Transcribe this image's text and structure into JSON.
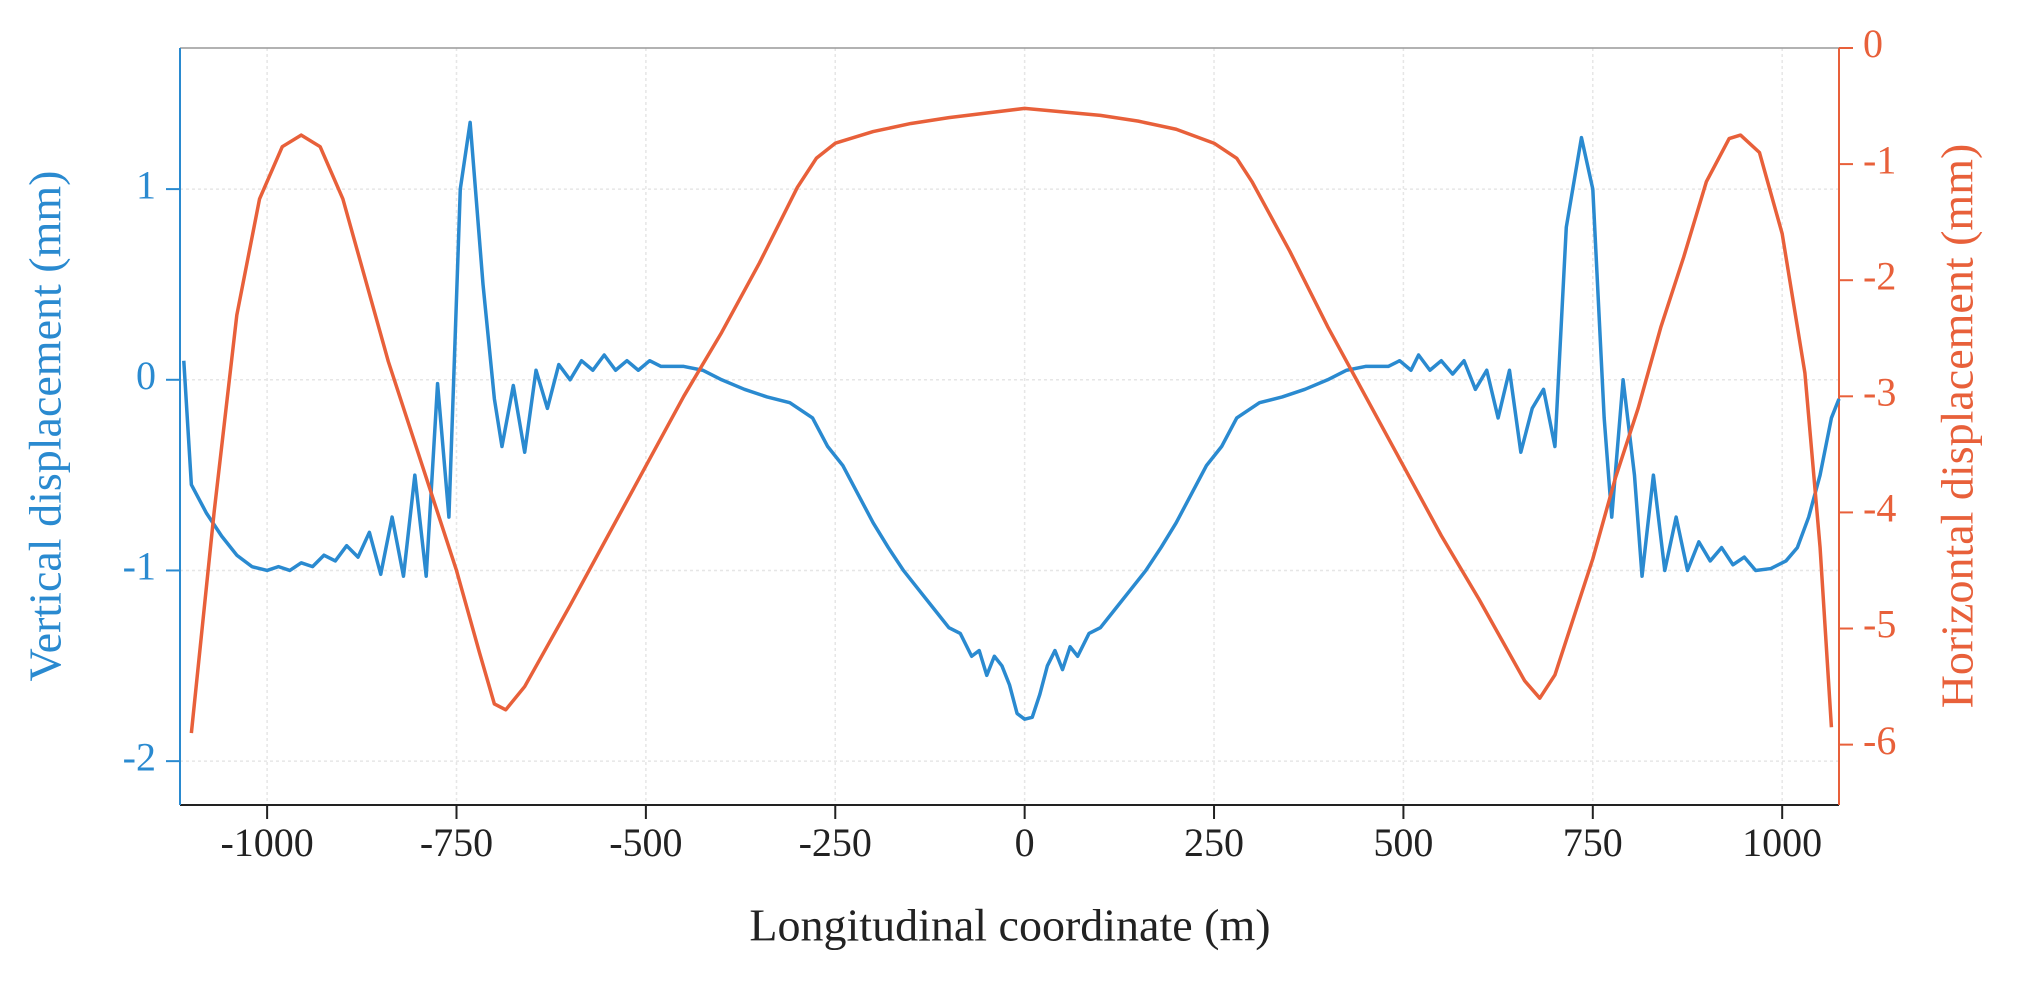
{
  "chart_data": {
    "type": "line",
    "x_label": "Longitudinal coordinate (m)",
    "y_label": "Vertical displacement (mm)",
    "y2_label": "Horizontal displacement (mm)",
    "xlim": [
      -1115,
      1075
    ],
    "xticks": [
      -1000,
      -750,
      -500,
      -250,
      0,
      250,
      500,
      750,
      1000
    ],
    "ylim": [
      -2.23,
      1.74
    ],
    "yticks": [
      1,
      0,
      -1,
      -2
    ],
    "y2lim": [
      -6.52,
      0
    ],
    "y2ticks": [
      0,
      -1,
      -2,
      -3,
      -4,
      -5,
      -6
    ],
    "grid": true,
    "series": [
      {
        "color": "#2a8ad0",
        "axis": "y",
        "x": [
          -1110,
          -1100,
          -1080,
          -1060,
          -1040,
          -1020,
          -1000,
          -985,
          -970,
          -955,
          -940,
          -925,
          -910,
          -895,
          -880,
          -865,
          -850,
          -835,
          -820,
          -805,
          -790,
          -775,
          -760,
          -745,
          -732,
          -715,
          -700,
          -690,
          -675,
          -660,
          -645,
          -630,
          -615,
          -600,
          -585,
          -570,
          -555,
          -540,
          -525,
          -510,
          -495,
          -480,
          -450,
          -425,
          -400,
          -370,
          -340,
          -310,
          -280,
          -260,
          -240,
          -220,
          -200,
          -180,
          -160,
          -140,
          -120,
          -100,
          -85,
          -70,
          -60,
          -50,
          -40,
          -30,
          -20,
          -10,
          0,
          10,
          20,
          30,
          40,
          50,
          60,
          70,
          85,
          100,
          120,
          140,
          160,
          180,
          200,
          220,
          240,
          260,
          280,
          310,
          340,
          370,
          400,
          425,
          450,
          480,
          495,
          510,
          520,
          535,
          550,
          565,
          580,
          595,
          610,
          625,
          640,
          655,
          670,
          685,
          700,
          715,
          735,
          750,
          765,
          775,
          790,
          805,
          815,
          830,
          845,
          860,
          875,
          890,
          905,
          920,
          935,
          950,
          965,
          985,
          1005,
          1020,
          1035,
          1050,
          1065,
          1075
        ],
        "values": [
          0.1,
          -0.55,
          -0.7,
          -0.82,
          -0.92,
          -0.98,
          -1.0,
          -0.98,
          -1.0,
          -0.96,
          -0.98,
          -0.92,
          -0.95,
          -0.87,
          -0.93,
          -0.8,
          -1.02,
          -0.72,
          -1.03,
          -0.5,
          -1.03,
          -0.02,
          -0.72,
          1.0,
          1.35,
          0.5,
          -0.1,
          -0.35,
          -0.03,
          -0.38,
          0.05,
          -0.15,
          0.08,
          0.0,
          0.1,
          0.05,
          0.13,
          0.05,
          0.1,
          0.05,
          0.1,
          0.07,
          0.07,
          0.05,
          0.0,
          -0.05,
          -0.09,
          -0.12,
          -0.2,
          -0.35,
          -0.45,
          -0.6,
          -0.75,
          -0.88,
          -1.0,
          -1.1,
          -1.2,
          -1.3,
          -1.33,
          -1.45,
          -1.42,
          -1.55,
          -1.45,
          -1.5,
          -1.6,
          -1.75,
          -1.78,
          -1.77,
          -1.65,
          -1.5,
          -1.42,
          -1.52,
          -1.4,
          -1.45,
          -1.33,
          -1.3,
          -1.2,
          -1.1,
          -1.0,
          -0.88,
          -0.75,
          -0.6,
          -0.45,
          -0.35,
          -0.2,
          -0.12,
          -0.09,
          -0.05,
          0.0,
          0.05,
          0.07,
          0.07,
          0.1,
          0.05,
          0.13,
          0.05,
          0.1,
          0.03,
          0.1,
          -0.05,
          0.05,
          -0.2,
          0.05,
          -0.38,
          -0.15,
          -0.05,
          -0.35,
          0.8,
          1.27,
          1.0,
          -0.2,
          -0.72,
          0.0,
          -0.5,
          -1.03,
          -0.5,
          -1.0,
          -0.72,
          -1.0,
          -0.85,
          -0.95,
          -0.88,
          -0.97,
          -0.93,
          -1.0,
          -0.99,
          -0.95,
          -0.88,
          -0.72,
          -0.5,
          -0.2,
          -0.1
        ]
      },
      {
        "color": "#e8603a",
        "axis": "y2",
        "x": [
          -1100,
          -1070,
          -1040,
          -1010,
          -980,
          -955,
          -930,
          -900,
          -870,
          -840,
          -810,
          -780,
          -750,
          -720,
          -700,
          -685,
          -660,
          -630,
          -600,
          -550,
          -500,
          -450,
          -400,
          -350,
          -300,
          -275,
          -250,
          -200,
          -150,
          -100,
          -50,
          0,
          50,
          100,
          150,
          200,
          250,
          280,
          300,
          350,
          400,
          450,
          500,
          550,
          600,
          630,
          660,
          680,
          700,
          720,
          750,
          780,
          810,
          840,
          870,
          900,
          930,
          945,
          970,
          1000,
          1030,
          1050,
          1065
        ],
        "values": [
          -5.9,
          -4.0,
          -2.3,
          -1.3,
          -0.85,
          -0.75,
          -0.85,
          -1.3,
          -2.0,
          -2.7,
          -3.3,
          -3.9,
          -4.5,
          -5.2,
          -5.65,
          -5.7,
          -5.5,
          -5.15,
          -4.8,
          -4.2,
          -3.6,
          -3.0,
          -2.45,
          -1.85,
          -1.2,
          -0.95,
          -0.82,
          -0.72,
          -0.65,
          -0.6,
          -0.56,
          -0.52,
          -0.55,
          -0.58,
          -0.63,
          -0.7,
          -0.82,
          -0.95,
          -1.15,
          -1.75,
          -2.4,
          -3.0,
          -3.6,
          -4.2,
          -4.75,
          -5.1,
          -5.45,
          -5.6,
          -5.4,
          -5.0,
          -4.4,
          -3.7,
          -3.1,
          -2.4,
          -1.8,
          -1.15,
          -0.78,
          -0.75,
          -0.9,
          -1.6,
          -2.8,
          -4.3,
          -5.85
        ]
      }
    ]
  }
}
